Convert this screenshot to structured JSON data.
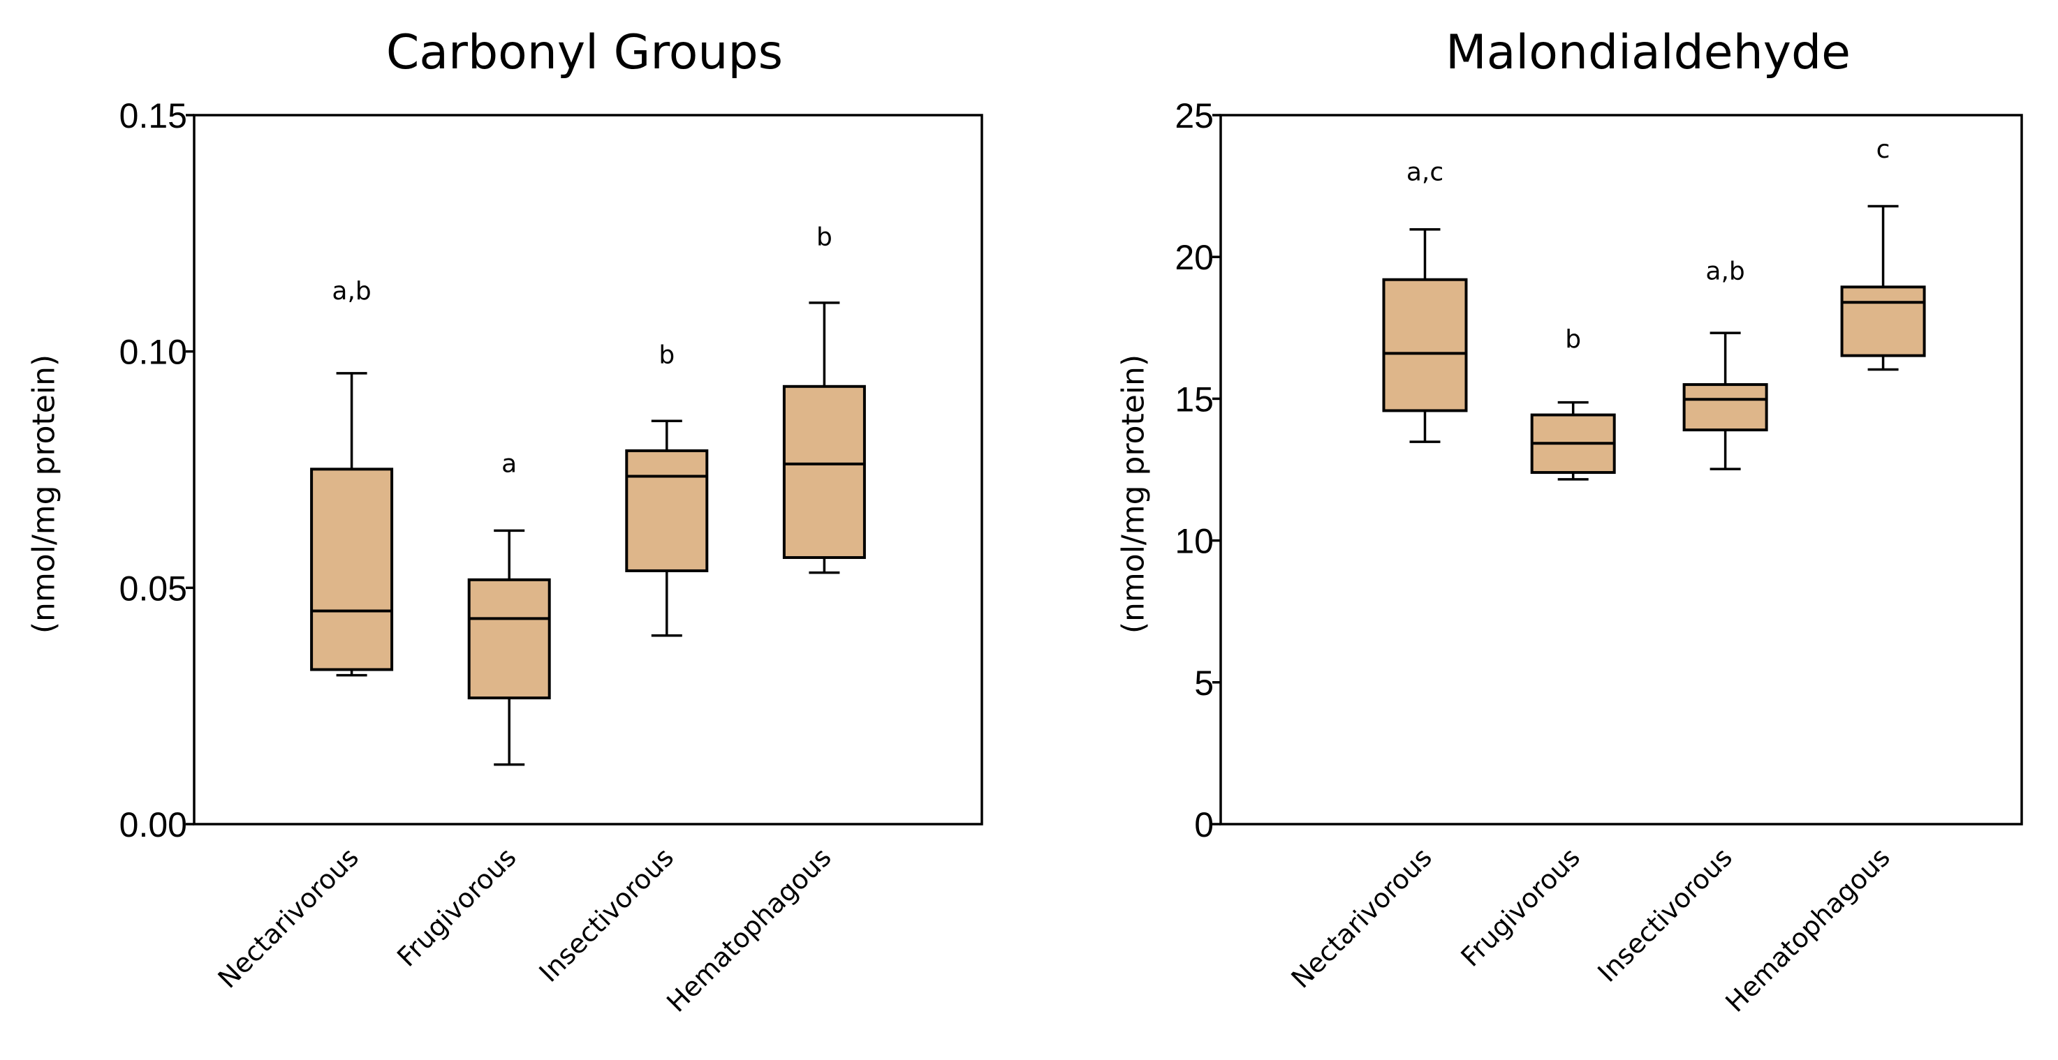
{
  "chart_data": [
    {
      "type": "box",
      "title": "Carbonyl Groups",
      "ylabel": "(nmol/mg protein)",
      "xlabel": "",
      "ylim": [
        0,
        0.15
      ],
      "yticks": [
        "0.00",
        "0.05",
        "0.10",
        "0.15"
      ],
      "ytick_values": [
        0,
        0.05,
        0.1,
        0.15
      ],
      "box_color": "#DEB68A",
      "categories": [
        "Nectarivorous",
        "Frugivorous",
        "Insectivorous",
        "Hematophagous"
      ],
      "boxes": [
        {
          "min": 0.0315,
          "q1": 0.0327,
          "median": 0.0451,
          "q3": 0.0751,
          "max": 0.0954,
          "label": "a,b",
          "label_y": 0.111
        },
        {
          "min": 0.0126,
          "q1": 0.0267,
          "median": 0.0435,
          "q3": 0.0517,
          "max": 0.0621,
          "label": "a",
          "label_y": 0.0745
        },
        {
          "min": 0.0399,
          "q1": 0.0536,
          "median": 0.0736,
          "q3": 0.079,
          "max": 0.0853,
          "label": "b",
          "label_y": 0.0975
        },
        {
          "min": 0.0532,
          "q1": 0.0564,
          "median": 0.0762,
          "q3": 0.0926,
          "max": 0.1103,
          "label": "b",
          "label_y": 0.1225
        }
      ]
    },
    {
      "type": "box",
      "title": "Malondialdehyde",
      "ylabel": "(nmol/mg protein)",
      "xlabel": "",
      "ylim": [
        0,
        25
      ],
      "yticks": [
        "0",
        "5",
        "10",
        "15",
        "20",
        "25"
      ],
      "ytick_values": [
        0,
        5,
        10,
        15,
        20,
        25
      ],
      "box_color": "#DEB68A",
      "categories": [
        "Nectarivorous",
        "Frugivorous",
        "Insectivorous",
        "Hematophagous"
      ],
      "boxes": [
        {
          "min": 13.48,
          "q1": 14.58,
          "median": 16.6,
          "q3": 19.2,
          "max": 20.97,
          "label": "a,c",
          "label_y": 22.7
        },
        {
          "min": 12.16,
          "q1": 12.4,
          "median": 13.43,
          "q3": 14.43,
          "max": 14.87,
          "label": "b",
          "label_y": 16.8
        },
        {
          "min": 12.52,
          "q1": 13.9,
          "median": 14.98,
          "q3": 15.5,
          "max": 17.32,
          "label": "a,b",
          "label_y": 19.2
        },
        {
          "min": 16.03,
          "q1": 16.52,
          "median": 18.4,
          "q3": 18.94,
          "max": 21.79,
          "label": "c",
          "label_y": 23.5
        }
      ]
    }
  ]
}
